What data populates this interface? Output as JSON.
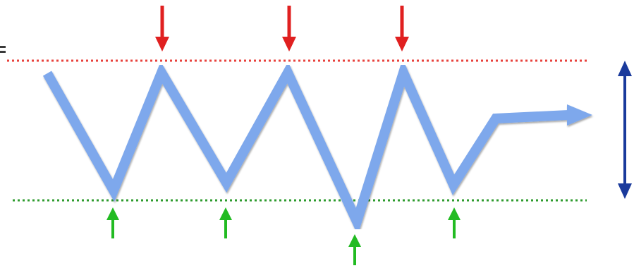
{
  "colors": {
    "resistance_line": "#e8423c",
    "support_line": "#2e9b2e",
    "price_path": "#7ea8ec",
    "price_path_shadow": "#5b7fc0",
    "resistance_arrow": "#e02020",
    "support_arrow": "#22bb22",
    "range_arrow": "#1a3a9c",
    "edge_mark": "#3a3a3a"
  },
  "icons": {
    "resistance_arrow": "arrow-down-icon",
    "support_arrow": "arrow-up-icon",
    "range_arrow": "double-arrow-vertical-icon",
    "breakout_arrow": "arrow-right-icon"
  },
  "counts": {
    "resistance_touches": 3,
    "support_touches": 4
  }
}
